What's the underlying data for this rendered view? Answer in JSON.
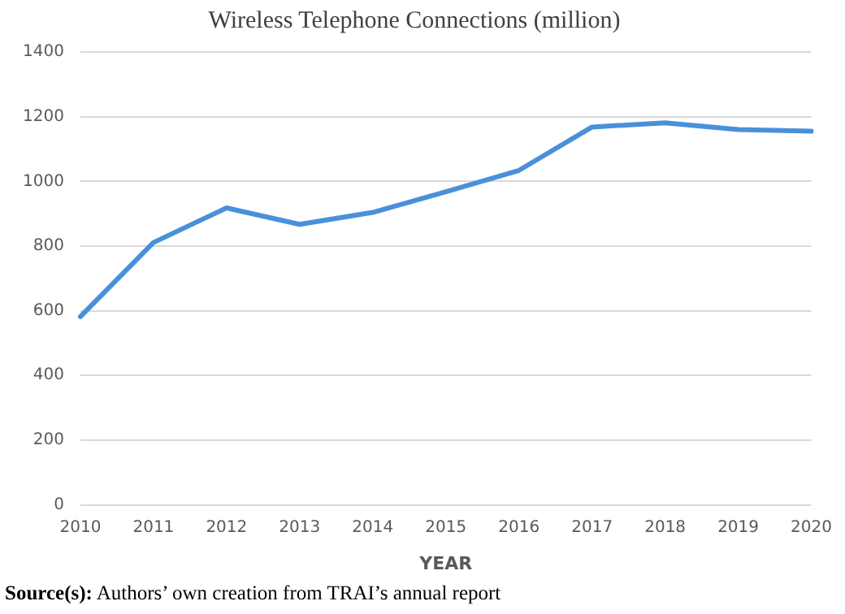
{
  "chart_data": {
    "type": "line",
    "title": "Wireless Telephone Connections (million)",
    "xlabel": "YEAR",
    "categories": [
      "2010",
      "2011",
      "2012",
      "2013",
      "2014",
      "2015",
      "2016",
      "2017",
      "2018",
      "2019",
      "2020"
    ],
    "series": [
      {
        "color": "#4a90d9",
        "values": [
          582,
          811,
          918,
          867,
          904,
          968,
          1034,
          1168,
          1181,
          1160,
          1155
        ]
      }
    ],
    "ylim": [
      0,
      1400
    ],
    "yticks": [
      0,
      200,
      400,
      600,
      800,
      1000,
      1200,
      1400
    ],
    "grid": "y",
    "legend": false,
    "marker": "none",
    "line_style": "solid",
    "annotations": [
      "Source(s): Authors’ own creation from TRAI’s annual report"
    ]
  }
}
